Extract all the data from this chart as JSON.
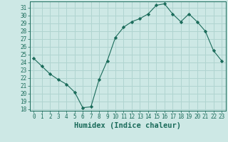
{
  "x": [
    0,
    1,
    2,
    3,
    4,
    5,
    6,
    7,
    8,
    9,
    10,
    11,
    12,
    13,
    14,
    15,
    16,
    17,
    18,
    19,
    20,
    21,
    22,
    23
  ],
  "y": [
    24.5,
    23.5,
    22.5,
    21.8,
    21.2,
    20.2,
    18.2,
    18.3,
    21.8,
    24.2,
    27.2,
    28.5,
    29.2,
    29.6,
    30.2,
    31.3,
    31.5,
    30.2,
    29.2,
    30.2,
    29.2,
    28.0,
    25.5,
    24.2
  ],
  "line_color": "#1a6b5a",
  "marker": "D",
  "marker_size": 2.2,
  "bg_color": "#cde8e5",
  "grid_color": "#b0d4d0",
  "xlabel": "Humidex (Indice chaleur)",
  "xlim": [
    -0.5,
    23.5
  ],
  "ylim": [
    17.8,
    31.8
  ],
  "xticks": [
    0,
    1,
    2,
    3,
    4,
    5,
    6,
    7,
    8,
    9,
    10,
    11,
    12,
    13,
    14,
    15,
    16,
    17,
    18,
    19,
    20,
    21,
    22,
    23
  ],
  "yticks": [
    18,
    19,
    20,
    21,
    22,
    23,
    24,
    25,
    26,
    27,
    28,
    29,
    30,
    31
  ],
  "tick_color": "#1a6b5a",
  "tick_fontsize": 5.5,
  "xlabel_fontsize": 7.5
}
